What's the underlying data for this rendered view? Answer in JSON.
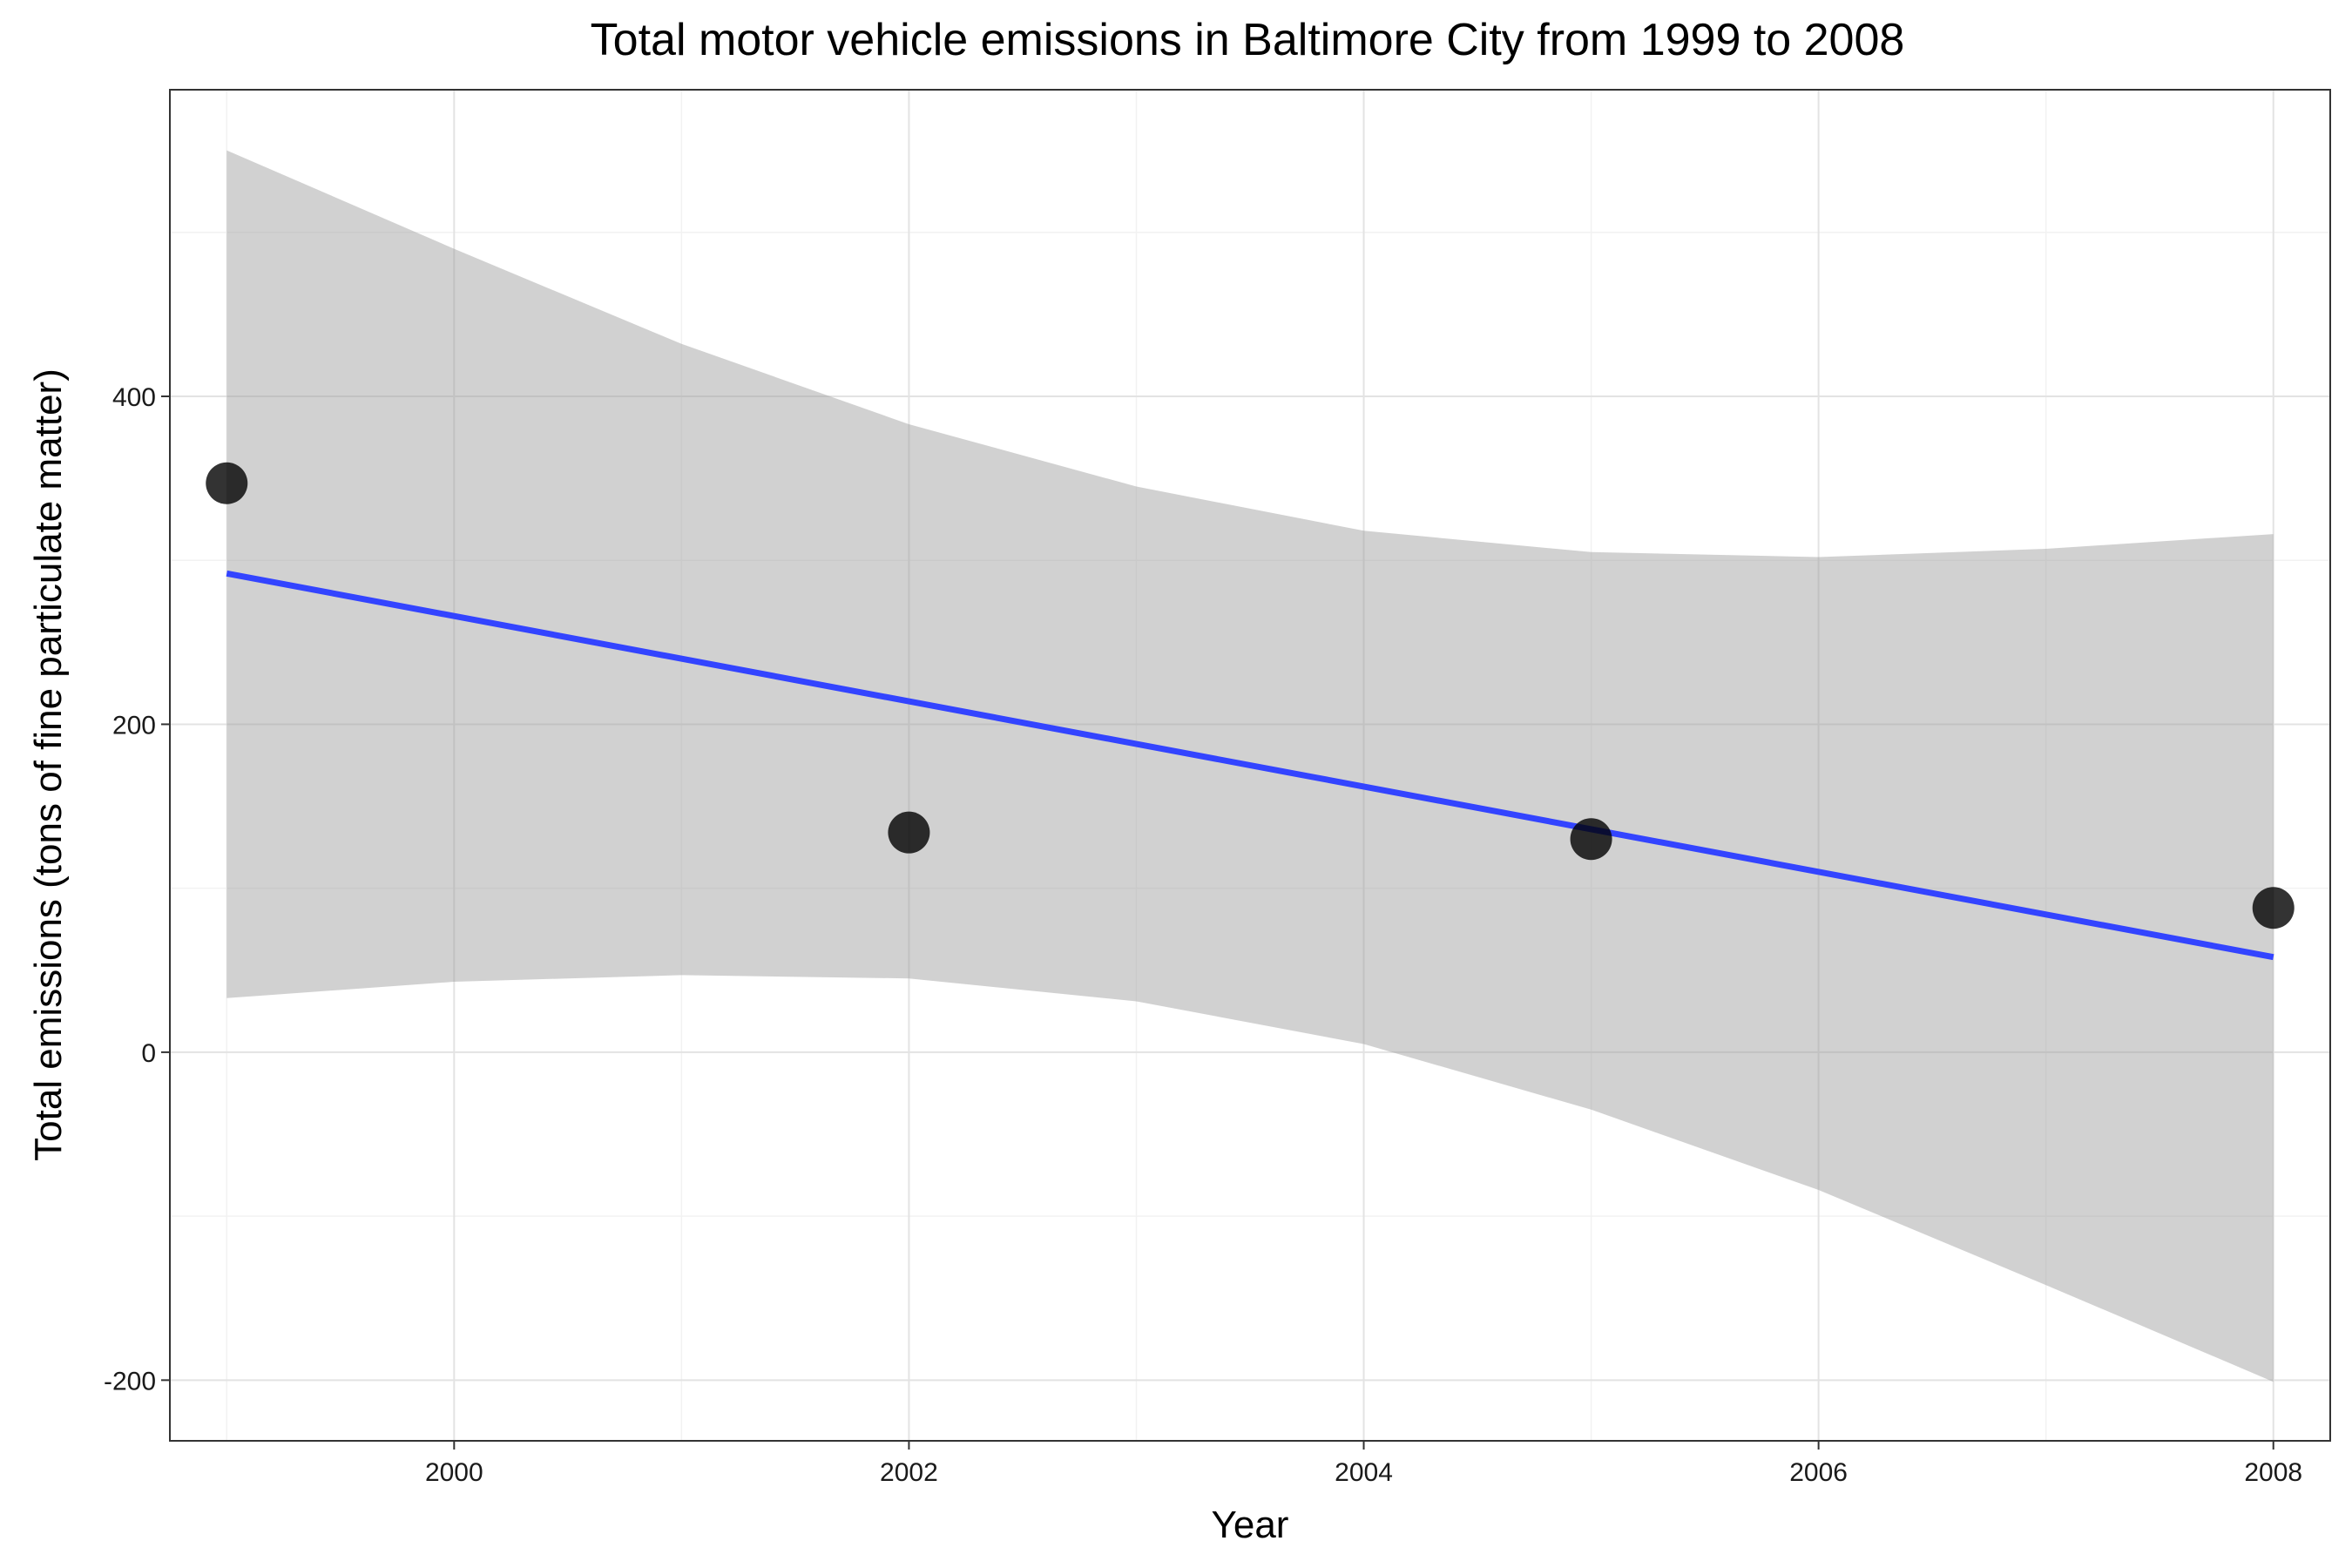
{
  "chart_data": {
    "type": "scatter",
    "title": "Total motor vehicle emissions in Baltimore City from 1999 to 2008",
    "xlabel": "Year",
    "ylabel": "Total emissions (tons of fine particulate matter)",
    "xlim": [
      1998.75,
      2008.25
    ],
    "ylim": [
      -237,
      587
    ],
    "x_ticks": [
      2000,
      2002,
      2004,
      2006,
      2008
    ],
    "x_tick_labels": [
      "2000",
      "2002",
      "2004",
      "2006",
      "2008"
    ],
    "y_ticks": [
      -200,
      0,
      200,
      400
    ],
    "y_tick_labels": [
      "-200",
      "0",
      "200",
      "400"
    ],
    "x_minor_ticks": [
      1999,
      2001,
      2003,
      2005,
      2007
    ],
    "y_minor_ticks": [
      -100,
      100,
      300,
      500
    ],
    "grid": true,
    "points": {
      "x": [
        1999,
        2002,
        2005,
        2008
      ],
      "y": [
        347,
        134,
        130,
        88
      ],
      "color": "#000000"
    },
    "fit": {
      "method": "linear",
      "x": [
        1999,
        2008
      ],
      "y": [
        292,
        58
      ],
      "color": "#3344ff"
    },
    "confidence_band": {
      "color": "#999999",
      "x": [
        1999,
        2000,
        2001,
        2002,
        2003,
        2004,
        2005,
        2006,
        2007,
        2008
      ],
      "upper": [
        550,
        490,
        432,
        383,
        345,
        318,
        305,
        302,
        307,
        316
      ],
      "lower": [
        33,
        43,
        47,
        45,
        31,
        5,
        -35,
        -84,
        -142,
        -201
      ]
    }
  }
}
